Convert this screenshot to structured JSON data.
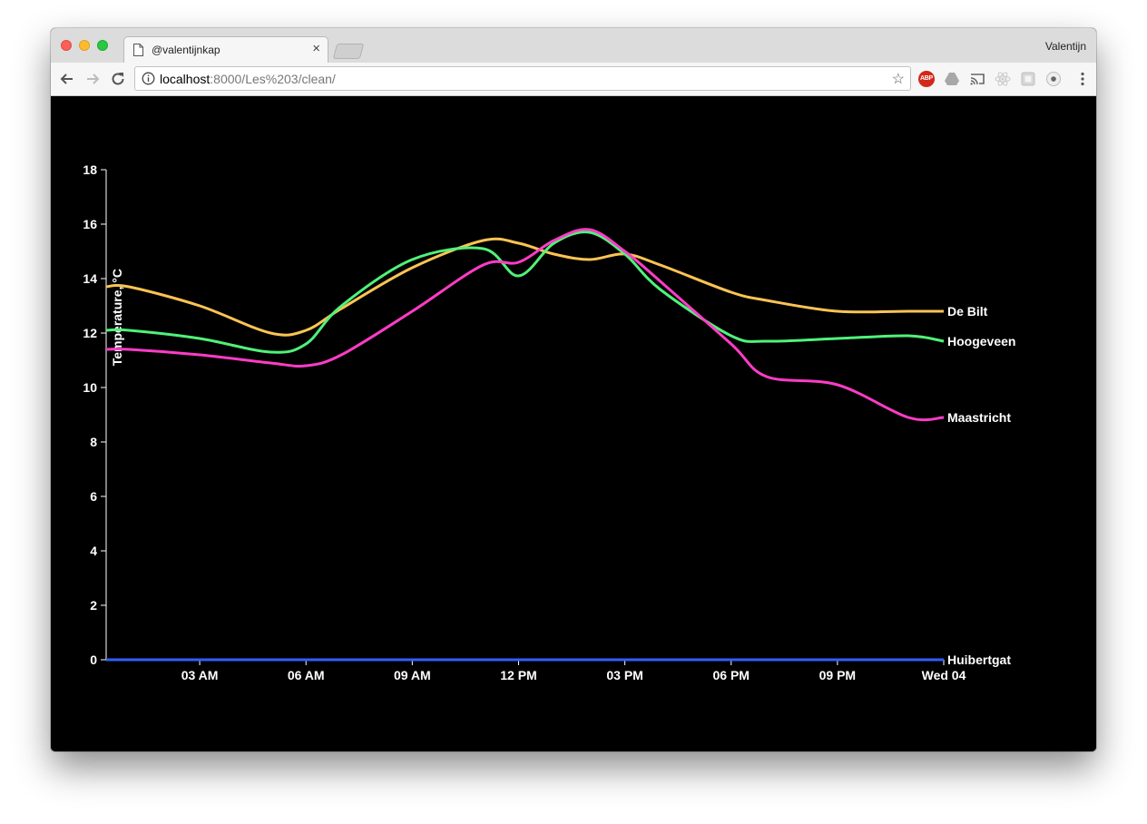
{
  "browser": {
    "tab_title": "@valentijnkap",
    "profile_name": "Valentijn",
    "url_host": "localhost",
    "url_rest": ":8000/Les%203/clean/",
    "extensions": [
      "abp-icon",
      "drive-icon",
      "cast-icon",
      "react-icon",
      "extension-icon",
      "record-icon"
    ]
  },
  "chart_data": {
    "type": "line",
    "title": "",
    "xlabel": "",
    "ylabel": "Temperature, °C",
    "ylim": [
      0,
      18
    ],
    "y_ticks": [
      "0",
      "2",
      "4",
      "6",
      "8",
      "10",
      "12",
      "14",
      "16",
      "18"
    ],
    "x_range": [
      "Tue 00:22",
      "Wed 00:00"
    ],
    "x_ticks": [
      {
        "label": "03 AM",
        "hour": 3
      },
      {
        "label": "06 AM",
        "hour": 6
      },
      {
        "label": "09 AM",
        "hour": 9
      },
      {
        "label": "12 PM",
        "hour": 12
      },
      {
        "label": "03 PM",
        "hour": 15
      },
      {
        "label": "06 PM",
        "hour": 18
      },
      {
        "label": "09 PM",
        "hour": 21
      },
      {
        "label": "Wed 04",
        "hour": 24
      }
    ],
    "hours": [
      1,
      3,
      5,
      6,
      7,
      9,
      11,
      12,
      13,
      14,
      15,
      16,
      18,
      19,
      21,
      23,
      24
    ],
    "series": [
      {
        "name": "De Bilt",
        "color": "#fbc453",
        "values": [
          13.7,
          13.0,
          12.0,
          12.1,
          12.9,
          14.4,
          15.4,
          15.3,
          14.9,
          14.7,
          14.9,
          14.5,
          13.5,
          13.2,
          12.8,
          12.8,
          12.8
        ]
      },
      {
        "name": "Hoogeveen",
        "color": "#4ff27a",
        "values": [
          12.1,
          11.8,
          11.3,
          11.6,
          13.0,
          14.7,
          15.1,
          14.1,
          15.3,
          15.7,
          14.9,
          13.6,
          11.9,
          11.7,
          11.8,
          11.9,
          11.7
        ]
      },
      {
        "name": "Maastricht",
        "color": "#ff3cc7",
        "values": [
          11.4,
          11.2,
          10.9,
          10.8,
          11.2,
          12.8,
          14.5,
          14.6,
          15.4,
          15.8,
          15.0,
          13.9,
          11.6,
          10.4,
          10.1,
          8.9,
          8.9
        ]
      },
      {
        "name": "Huibertgat",
        "color": "#2f5fff",
        "values": [
          0,
          0,
          0,
          0,
          0,
          0,
          0,
          0,
          0,
          0,
          0,
          0,
          0,
          0,
          0,
          0,
          0
        ]
      }
    ]
  }
}
